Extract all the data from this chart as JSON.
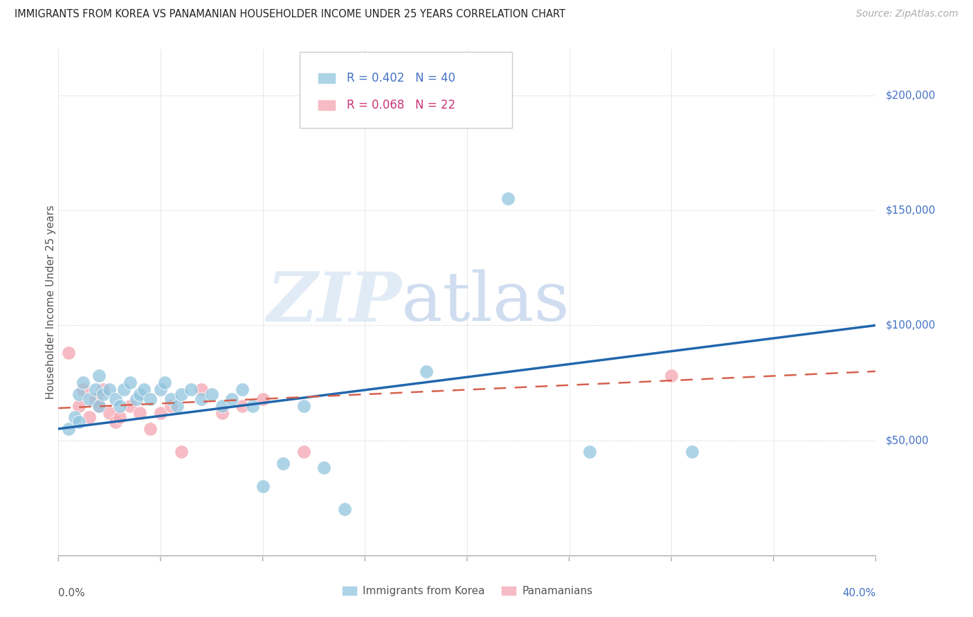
{
  "title": "IMMIGRANTS FROM KOREA VS PANAMANIAN HOUSEHOLDER INCOME UNDER 25 YEARS CORRELATION CHART",
  "source": "Source: ZipAtlas.com",
  "ylabel": "Householder Income Under 25 years",
  "korea_R": "0.402",
  "korea_N": "40",
  "panama_R": "0.068",
  "panama_N": "22",
  "ytick_labels": [
    "$50,000",
    "$100,000",
    "$150,000",
    "$200,000"
  ],
  "ytick_values": [
    50000,
    100000,
    150000,
    200000
  ],
  "xmin": 0.0,
  "xmax": 0.4,
  "ymin": 0,
  "ymax": 220000,
  "korea_color": "#92c5de",
  "korea_line_color": "#2166ac",
  "panama_color": "#f4a5b0",
  "panama_line_color": "#d6604d",
  "korea_x": [
    0.005,
    0.008,
    0.01,
    0.01,
    0.012,
    0.015,
    0.018,
    0.02,
    0.02,
    0.022,
    0.025,
    0.028,
    0.03,
    0.032,
    0.035,
    0.038,
    0.04,
    0.042,
    0.045,
    0.05,
    0.052,
    0.055,
    0.058,
    0.06,
    0.065,
    0.07,
    0.075,
    0.08,
    0.085,
    0.09,
    0.095,
    0.1,
    0.11,
    0.12,
    0.13,
    0.14,
    0.18,
    0.22,
    0.26,
    0.31
  ],
  "korea_y": [
    55000,
    60000,
    70000,
    58000,
    75000,
    68000,
    72000,
    65000,
    78000,
    70000,
    72000,
    68000,
    65000,
    72000,
    75000,
    68000,
    70000,
    72000,
    68000,
    72000,
    75000,
    68000,
    65000,
    70000,
    72000,
    68000,
    70000,
    65000,
    68000,
    72000,
    65000,
    30000,
    40000,
    65000,
    38000,
    20000,
    80000,
    155000,
    45000,
    45000
  ],
  "panama_x": [
    0.005,
    0.01,
    0.012,
    0.015,
    0.018,
    0.02,
    0.022,
    0.025,
    0.028,
    0.03,
    0.035,
    0.04,
    0.045,
    0.05,
    0.055,
    0.06,
    0.07,
    0.08,
    0.09,
    0.1,
    0.12,
    0.3
  ],
  "panama_y": [
    88000,
    65000,
    72000,
    60000,
    68000,
    65000,
    72000,
    62000,
    58000,
    60000,
    65000,
    62000,
    55000,
    62000,
    65000,
    45000,
    72000,
    62000,
    65000,
    68000,
    45000,
    78000
  ],
  "korea_line_x": [
    0.0,
    0.4
  ],
  "korea_line_y": [
    55000,
    100000
  ],
  "panama_line_x": [
    0.0,
    0.4
  ],
  "panama_line_y": [
    64000,
    80000
  ]
}
